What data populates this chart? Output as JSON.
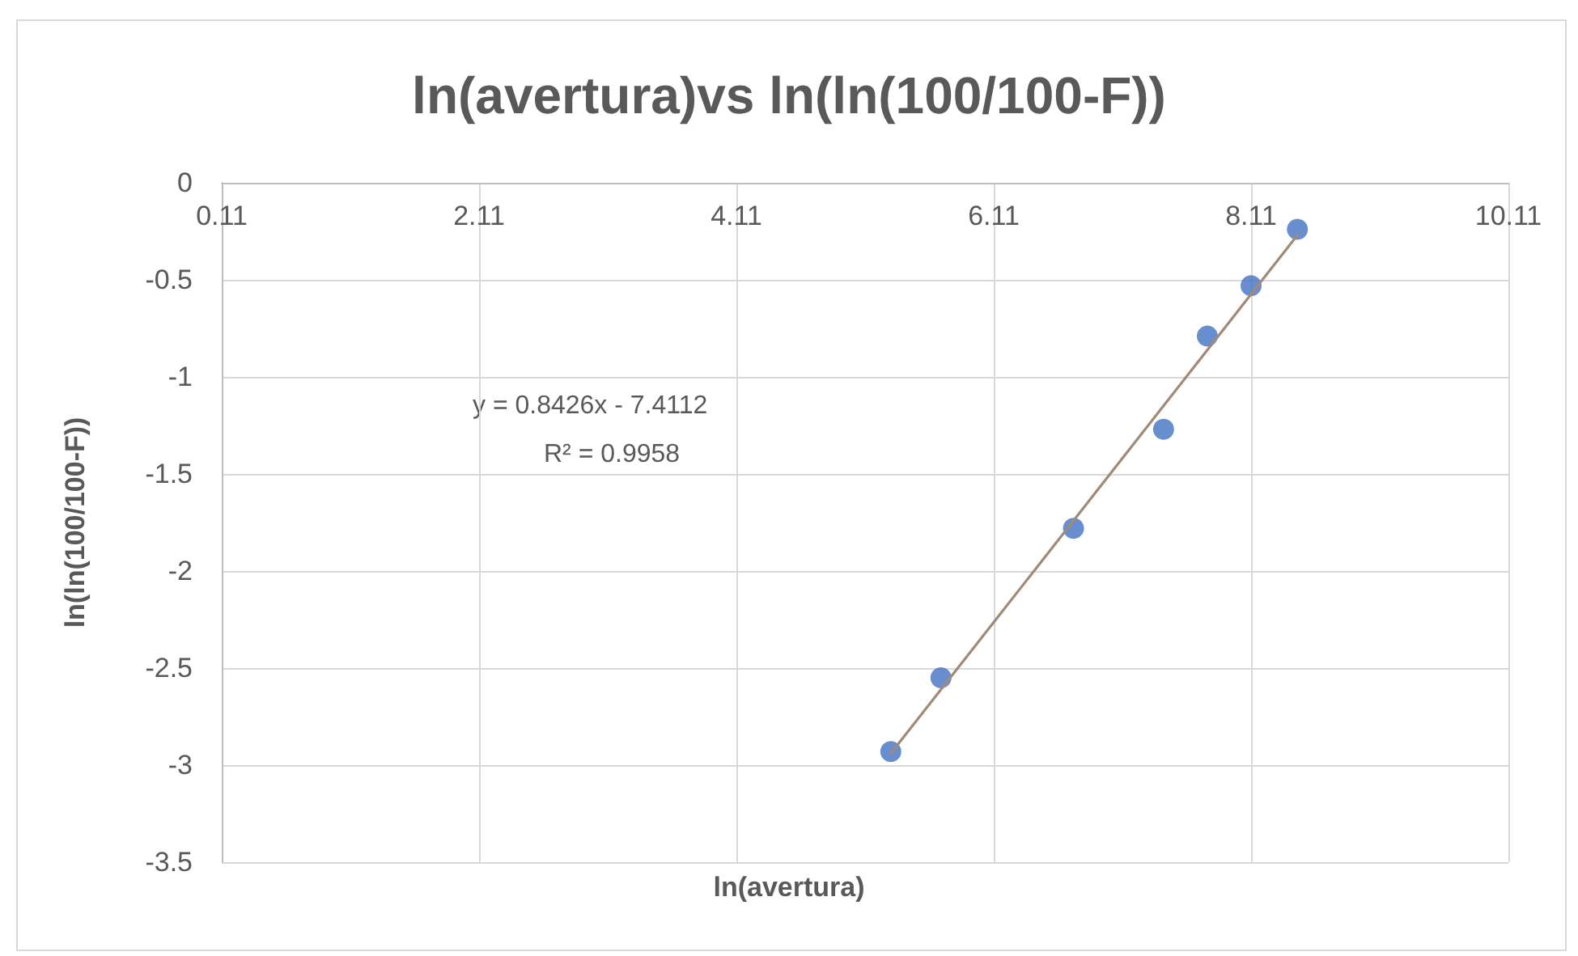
{
  "chart_data": {
    "type": "scatter",
    "title": "ln(avertura)vs ln(ln(100/100-F))",
    "xlabel": "ln(avertura)",
    "ylabel": "ln(ln(100/100-F))",
    "annotations": [
      "y = 0.8426x - 7.4112",
      "R² = 0.9958"
    ],
    "x": [
      5.31,
      5.7,
      6.73,
      7.43,
      7.77,
      8.11,
      8.47
    ],
    "series": [
      {
        "color": "#4472c4",
        "values": [
          -2.93,
          -2.55,
          -1.78,
          -1.27,
          -0.79,
          -0.53,
          -0.24
        ]
      },
      {
        "type": "line",
        "color": "#a08a78",
        "x": [
          5.31,
          8.47
        ],
        "values": [
          -2.94,
          -0.27
        ],
        "marker": "none"
      }
    ],
    "xlim": [
      0.11,
      10.11
    ],
    "xticks": [
      0.11,
      2.11,
      4.11,
      6.11,
      8.11,
      10.11
    ],
    "ylim": [
      -3.5,
      0
    ],
    "yticks": [
      -3.5,
      -3,
      -2.5,
      -2,
      -1.5,
      -1,
      -0.5,
      0
    ],
    "grid": true,
    "marker": "circle"
  }
}
